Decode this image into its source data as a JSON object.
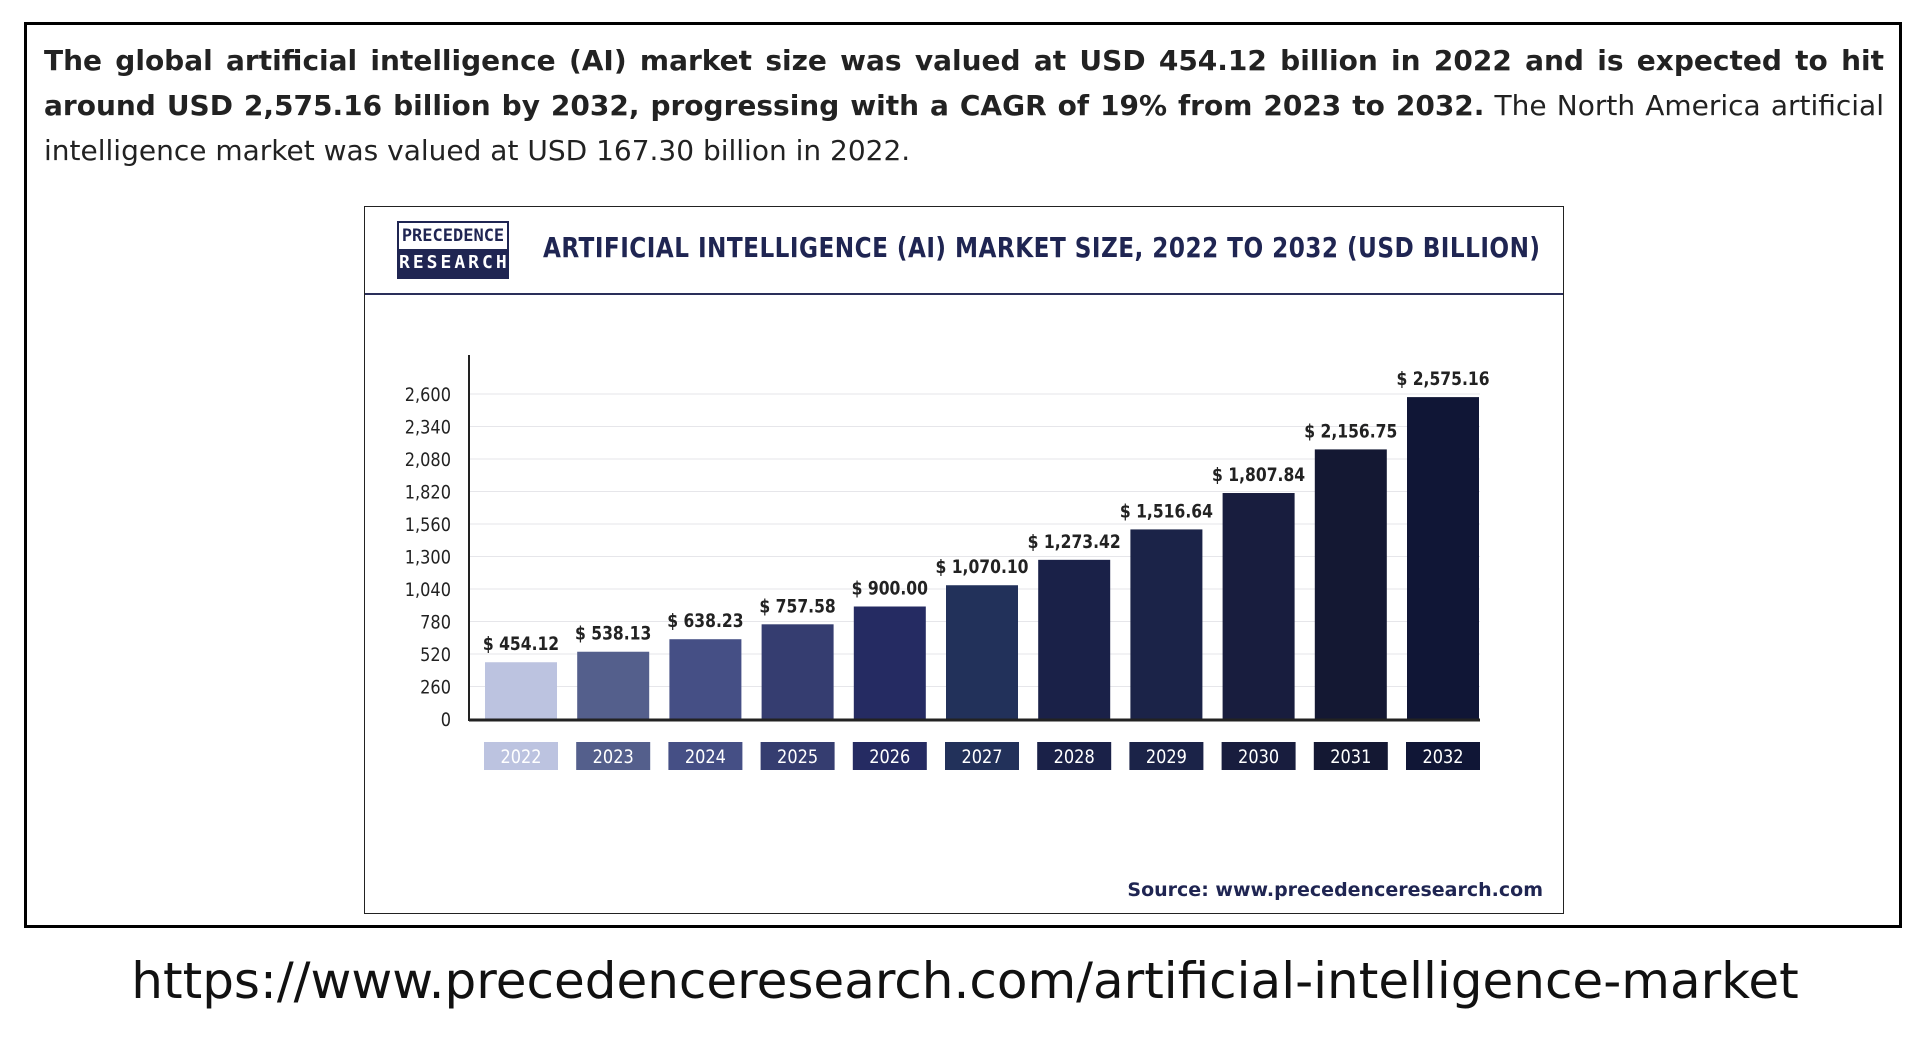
{
  "intro": {
    "bold_text": "The global artificial intelligence (AI) market size was valued at USD 454.12 billion in 2022 and is expected to hit around USD 2,575.16 billion by 2032, progressing with a CAGR of 19% from 2023 to 2032.",
    "normal_text": " The North America artificial intelligence market was valued at USD 167.30 billion in 2022."
  },
  "logo": {
    "line1": "PRECEDENCE",
    "line2": "RESEARCH"
  },
  "source": "Source: www.precedenceresearch.com",
  "url": "https://www.precedenceresearch.com/artificial-intelligence-market",
  "chart_data": {
    "type": "bar",
    "title": "ARTIFICIAL INTELLIGENCE (AI) MARKET SIZE, 2022 TO 2032 (USD BILLION)",
    "xlabel": "",
    "ylabel": "",
    "categories": [
      "2022",
      "2023",
      "2024",
      "2025",
      "2026",
      "2027",
      "2028",
      "2029",
      "2030",
      "2031",
      "2032"
    ],
    "values": [
      454.12,
      538.13,
      638.23,
      757.58,
      900.0,
      1070.1,
      1273.42,
      1516.64,
      1807.84,
      2156.75,
      2575.16
    ],
    "value_labels": [
      "$ 454.12",
      "$ 538.13",
      "$ 638.23",
      "$ 757.58",
      "$ 900.00",
      "$ 1,070.10",
      "$ 1,273.42",
      "$ 1,516.64",
      "$ 1,807.84",
      "$ 2,156.75",
      "$ 2,575.16"
    ],
    "yticks": [
      0,
      260,
      520,
      780,
      1040,
      1300,
      1560,
      1820,
      2080,
      2340,
      2600
    ],
    "ytick_labels": [
      "0",
      "260",
      "520",
      "780",
      "1,040",
      "1,300",
      "1,560",
      "1,820",
      "2,080",
      "2,340",
      "2,600"
    ],
    "ylim": [
      0,
      2600
    ],
    "grid": true,
    "colors": [
      "#bcc3e0",
      "#545f8c",
      "#454f85",
      "#353d70",
      "#252b62",
      "#22315a",
      "#1a2148",
      "#1b2348",
      "#181d3e",
      "#141833",
      "#101636"
    ]
  }
}
